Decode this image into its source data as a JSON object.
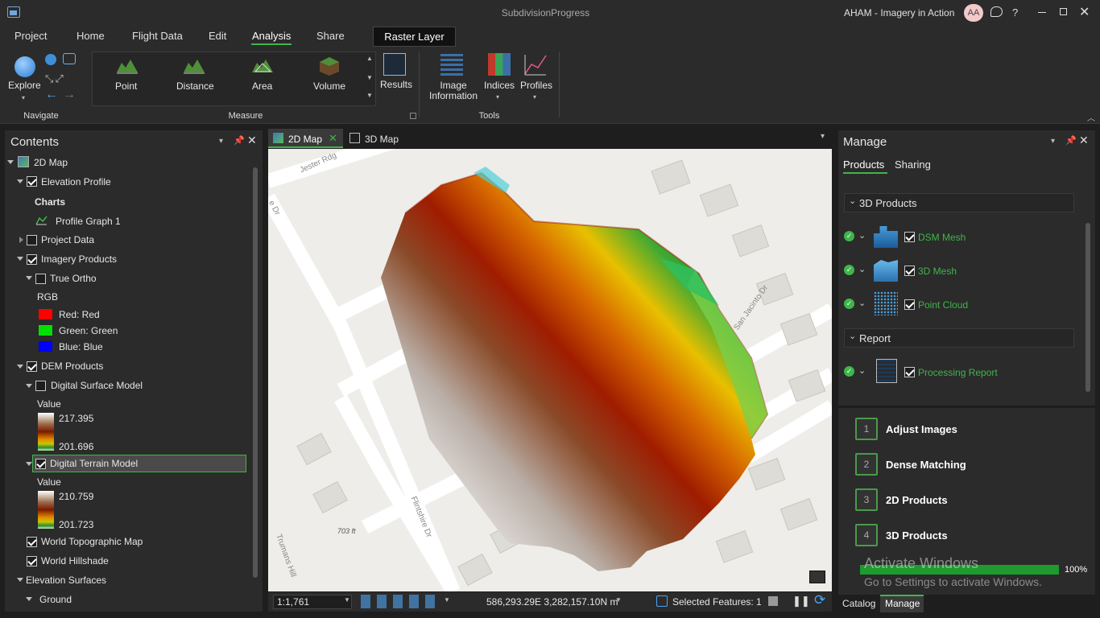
{
  "titlebar": {
    "project": "SubdivisionProgress",
    "user": "AHAM - Imagery in Action",
    "avatar": "AA",
    "help": "?"
  },
  "tabs": [
    {
      "label": "Project"
    },
    {
      "label": "Home"
    },
    {
      "label": "Flight Data"
    },
    {
      "label": "Edit"
    },
    {
      "label": "Analysis"
    },
    {
      "label": "Share"
    }
  ],
  "context_tab": "Raster Layer",
  "ribbon": {
    "explore": "Explore",
    "navigate_group": "Navigate",
    "point": "Point",
    "distance": "Distance",
    "area": "Area",
    "volume": "Volume",
    "measure_group": "Measure",
    "results": "Results",
    "image_information_1": "Image",
    "image_information_2": "Information",
    "indices": "Indices",
    "profiles": "Profiles",
    "tools_group": "Tools"
  },
  "contents": {
    "title": "Contents",
    "items": {
      "map": "2D Map",
      "elevation_profile": "Elevation Profile",
      "charts": "Charts",
      "profile_graph": "Profile Graph 1",
      "project_data": "Project Data",
      "imagery_products": "Imagery Products",
      "true_ortho": "True Ortho",
      "rgb": "RGB",
      "red": "Red:   Red",
      "green": "Green: Green",
      "blue": "Blue:  Blue",
      "dem_products": "DEM Products",
      "dsm": "Digital Surface Model",
      "dsm_value": "Value",
      "dsm_max": "217.395",
      "dsm_min": "201.696",
      "dtm": "Digital Terrain Model",
      "dtm_value": "Value",
      "dtm_max": "210.759",
      "dtm_min": "201.723",
      "world_topo": "World Topographic Map",
      "world_hillshade": "World Hillshade",
      "elevation_surfaces": "Elevation Surfaces",
      "ground": "Ground"
    }
  },
  "map_tabs": {
    "tab_2d": "2D Map",
    "tab_3d": "3D Map"
  },
  "map": {
    "labels": {
      "jester": "Jester Rdg",
      "san_jacinto": "San Jacinto Dr",
      "flintshire": "Flintshire Dr",
      "trumans": "Trumans Hill",
      "elev": "703 ft",
      "dr": "e Dr"
    }
  },
  "statusbar": {
    "scale": "1:1,761",
    "coords": "586,293.29E 3,282,157.10N m",
    "selected": "Selected Features: 1"
  },
  "manage": {
    "title": "Manage",
    "tab_products": "Products",
    "tab_sharing": "Sharing",
    "section_3d": "3D Products",
    "dsm_mesh": "DSM Mesh",
    "mesh_3d": "3D Mesh",
    "point_cloud": "Point Cloud",
    "section_report": "Report",
    "processing_report": "Processing Report"
  },
  "steps": [
    {
      "num": "1",
      "label": "Adjust Images"
    },
    {
      "num": "2",
      "label": "Dense Matching"
    },
    {
      "num": "3",
      "label": "2D Products"
    },
    {
      "num": "4",
      "label": "3D Products"
    }
  ],
  "progress": {
    "value": 1.0,
    "label": "100%"
  },
  "watermark": {
    "line1": "Activate Windows",
    "line2": "Go to Settings to activate Windows."
  },
  "bottom_tabs": {
    "catalog": "Catalog",
    "manage": "Manage"
  },
  "colors": {
    "accent": "#3fb54a",
    "selection": "#4a4a4a"
  }
}
